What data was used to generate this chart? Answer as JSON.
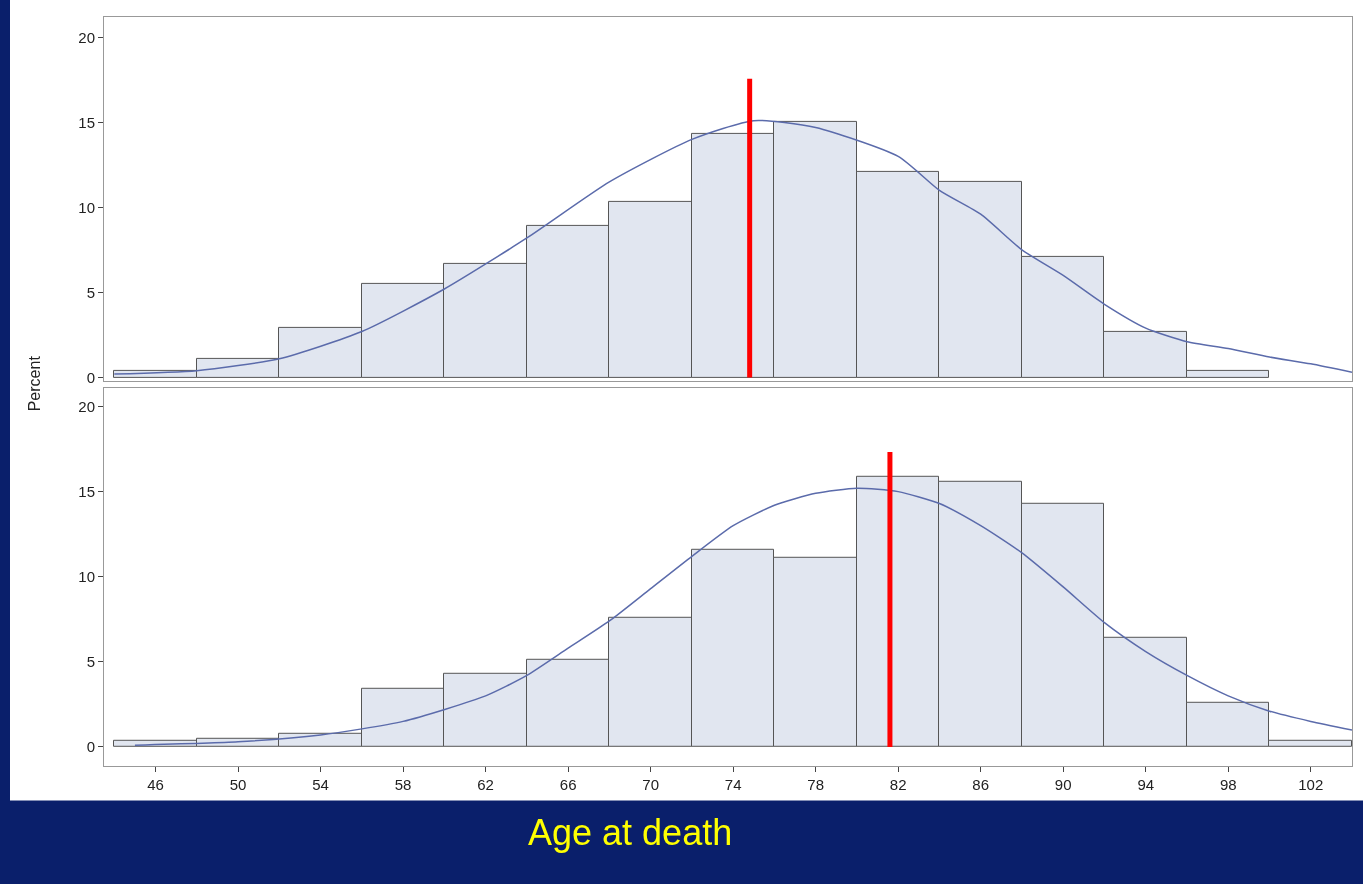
{
  "chart_data": [
    {
      "type": "histogram",
      "ylabel": "Percent",
      "bins": [
        44,
        48,
        52,
        56,
        60,
        64,
        68,
        72,
        76,
        80,
        84,
        88,
        92,
        96,
        100,
        104
      ],
      "values": [
        0.4,
        1.1,
        2.9,
        5.5,
        6.7,
        8.9,
        10.3,
        14.3,
        15.0,
        12.1,
        11.5,
        7.1,
        2.7,
        0.4,
        0
      ],
      "color": "#e1e6f0",
      "series": [
        {
          "type": "line",
          "color": "#5b6bab",
          "x": [
            44,
            48,
            52,
            56,
            60,
            64,
            68,
            72,
            75,
            78,
            82,
            84,
            86,
            88,
            90,
            92,
            94,
            96,
            98,
            100,
            102,
            104
          ],
          "values": [
            0.2,
            0.4,
            1.1,
            2.7,
            5.2,
            8.2,
            11.5,
            14.0,
            15.1,
            14.7,
            13.0,
            11.0,
            9.6,
            7.5,
            6.0,
            4.3,
            2.9,
            2.1,
            1.7,
            1.2,
            0.8,
            0.3
          ]
        }
      ],
      "xlim": [
        43.5,
        104
      ],
      "ylim": [
        -0.2,
        21.2
      ],
      "yticks": [
        0,
        5,
        10,
        15,
        20
      ],
      "tick_labels": "y",
      "ref_lines": [
        {
          "axis": "x",
          "value": 74.8,
          "color": "#ff0000"
        }
      ]
    },
    {
      "type": "histogram",
      "xlabel": "Age at death",
      "bins": [
        44,
        48,
        52,
        56,
        60,
        64,
        68,
        72,
        76,
        80,
        84,
        88,
        92,
        96,
        100,
        104
      ],
      "values": [
        0.35,
        0.5,
        0.8,
        3.4,
        4.3,
        5.1,
        7.6,
        11.6,
        11.1,
        15.9,
        15.6,
        14.3,
        6.4,
        2.6,
        0.35
      ],
      "color": "#e1e6f0",
      "series": [
        {
          "type": "line",
          "color": "#5b6bab",
          "x": [
            45,
            50,
            54,
            58,
            62,
            64,
            66,
            68,
            70,
            72,
            74,
            76,
            78,
            80,
            82,
            84,
            86,
            88,
            90,
            92,
            94,
            96,
            98,
            100,
            102,
            104
          ],
          "values": [
            0.1,
            0.3,
            0.7,
            1.5,
            3.0,
            4.2,
            5.8,
            7.4,
            9.3,
            11.2,
            13.0,
            14.2,
            14.9,
            15.2,
            15.0,
            14.3,
            13.0,
            11.4,
            9.4,
            7.3,
            5.6,
            4.2,
            3.0,
            2.1,
            1.5,
            1.0
          ]
        }
      ],
      "xlim": [
        43.5,
        104
      ],
      "ylim": [
        -1.1,
        21.1
      ],
      "xticks": [
        46,
        50,
        54,
        58,
        62,
        66,
        70,
        74,
        78,
        82,
        86,
        90,
        94,
        98,
        102
      ],
      "yticks": [
        0,
        5,
        10,
        15,
        20
      ],
      "ref_lines": [
        {
          "axis": "x",
          "value": 81.6,
          "color": "#ff0000"
        }
      ]
    }
  ]
}
